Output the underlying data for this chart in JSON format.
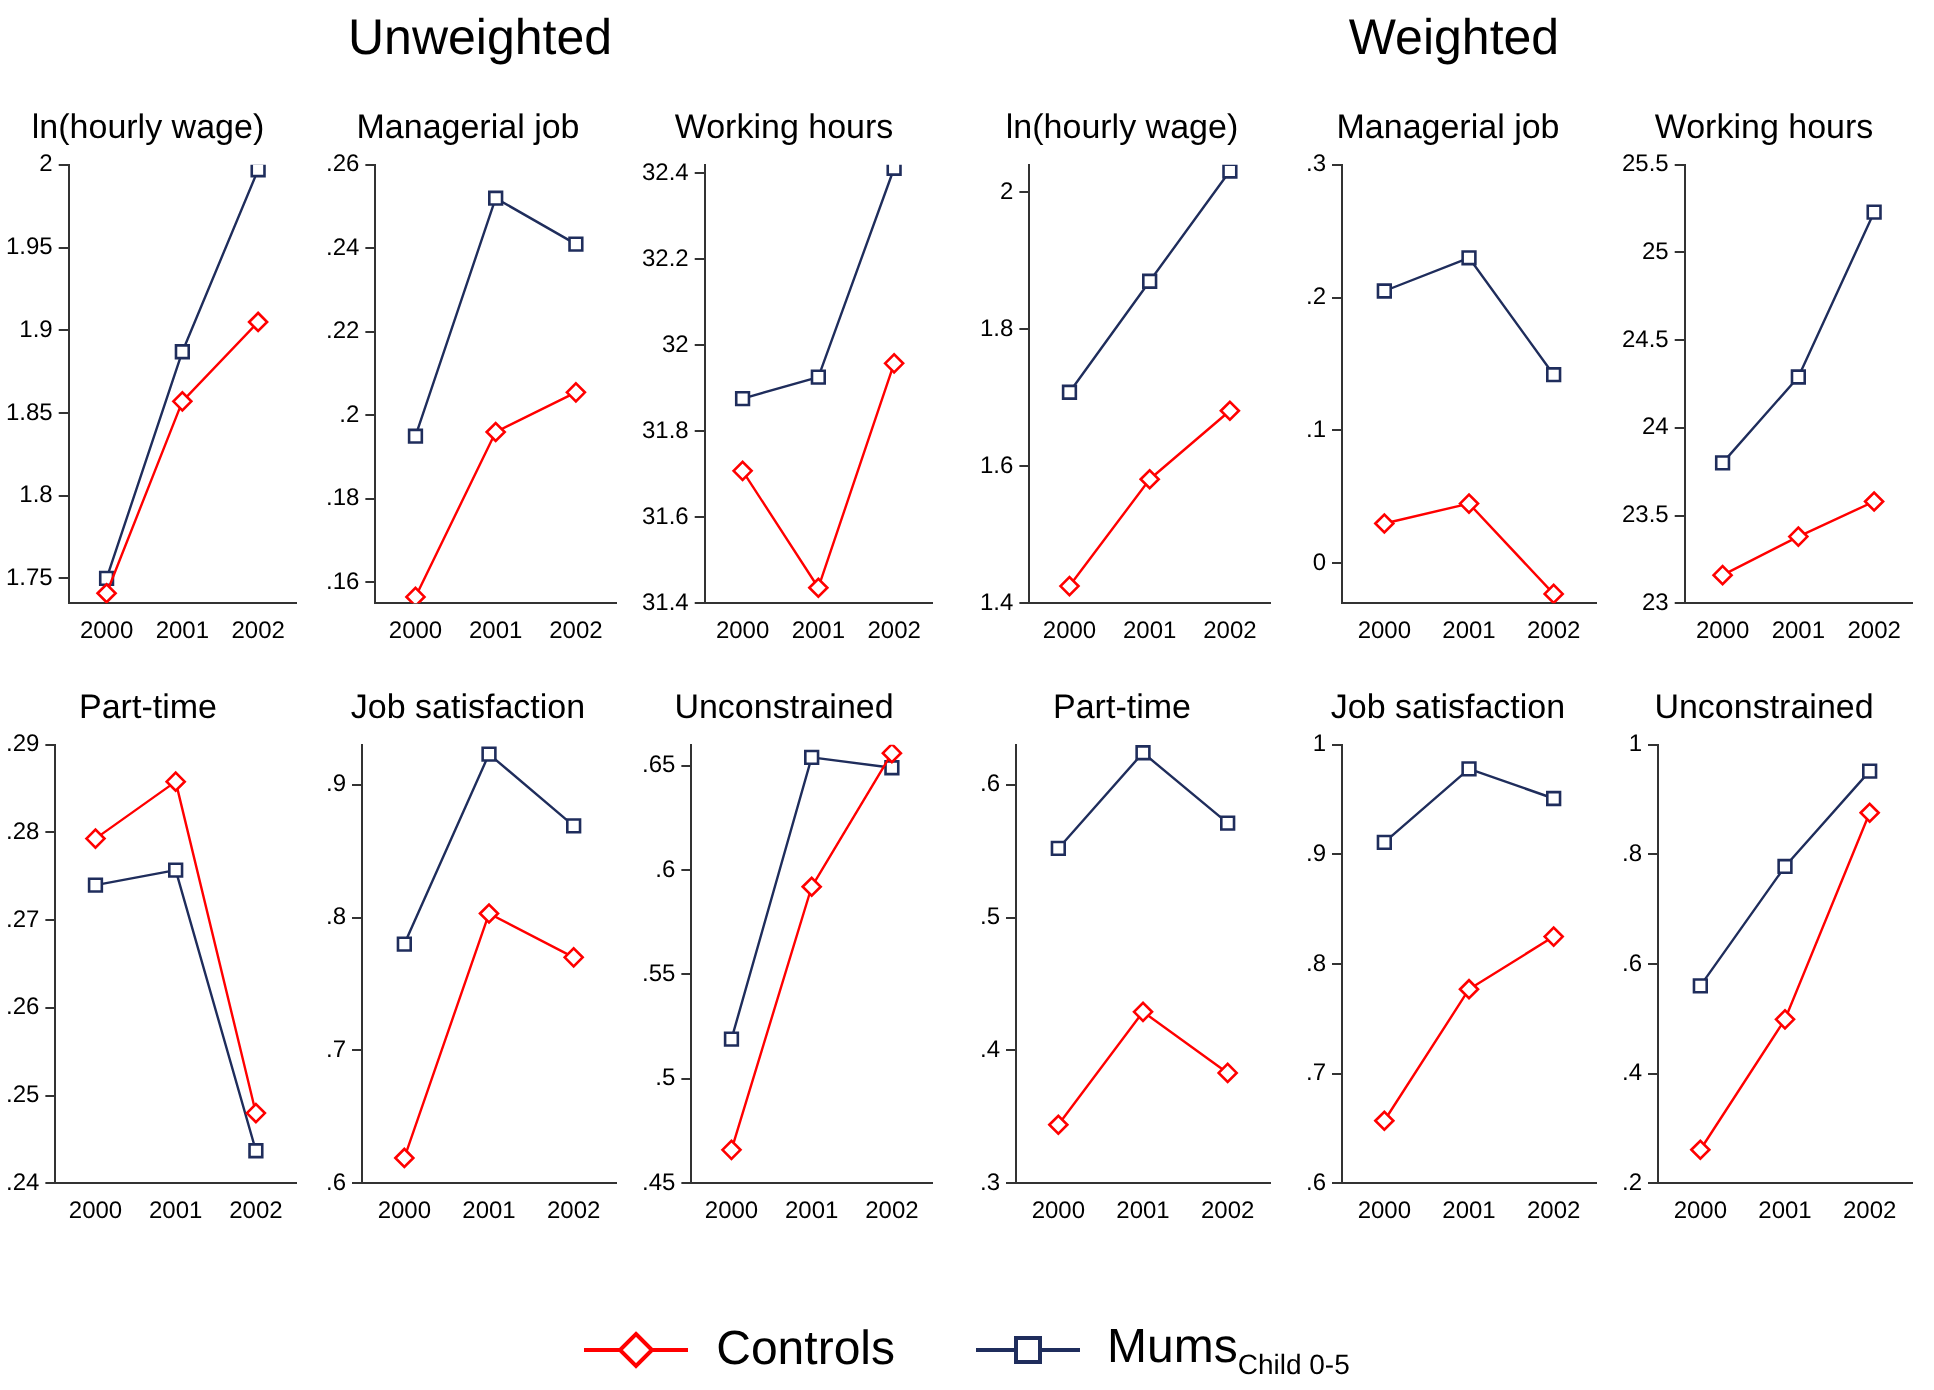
{
  "chart_data": [
    {
      "type": "line",
      "title": "ln(hourly wage)",
      "annotations": [
        "Unweighted"
      ],
      "legend": "bottom",
      "categories": [
        "2000",
        "2001",
        "2002"
      ],
      "ylim": [
        1.735,
        2.0
      ],
      "yticks": [
        1.75,
        1.8,
        1.85,
        1.9,
        1.95,
        2
      ],
      "series": [
        {
          "name": "Controls",
          "color": "#ff0000",
          "marker": "diamond",
          "values": [
            1.741,
            1.857,
            1.905
          ]
        },
        {
          "name": "Mums$_{Child 0-5}$",
          "color": "#1f2d5c",
          "marker": "square",
          "values": [
            1.75,
            1.887,
            1.997
          ]
        }
      ]
    },
    {
      "type": "line",
      "title": "Managerial job",
      "categories": [
        "2000",
        "2001",
        "2002"
      ],
      "ylim": [
        0.155,
        0.26
      ],
      "yticks": [
        {
          "value": 0.16,
          "label": ".16"
        },
        {
          "value": 0.18,
          "label": ".18"
        },
        {
          "value": 0.2,
          "label": ".2"
        },
        {
          "value": 0.22,
          "label": ".22"
        },
        {
          "value": 0.24,
          "label": ".24"
        },
        {
          "value": 0.26,
          "label": ".26"
        }
      ],
      "series": [
        {
          "color": "#ff0000",
          "marker": "diamond",
          "values": [
            0.1565,
            0.196,
            0.2055
          ]
        },
        {
          "color": "#1f2d5c",
          "marker": "square",
          "values": [
            0.195,
            0.252,
            0.241
          ]
        }
      ]
    },
    {
      "type": "line",
      "title": "Working hours",
      "categories": [
        "2000",
        "2001",
        "2002"
      ],
      "ylim": [
        31.4,
        32.42
      ],
      "yticks": [
        31.4,
        31.6,
        31.8,
        32,
        32.2,
        32.4
      ],
      "series": [
        {
          "color": "#ff0000",
          "marker": "diamond",
          "values": [
            31.708,
            31.436,
            31.958
          ]
        },
        {
          "color": "#1f2d5c",
          "marker": "square",
          "values": [
            31.876,
            31.926,
            32.412
          ]
        }
      ]
    },
    {
      "type": "line",
      "title": "ln(hourly wage)",
      "annotations": [
        "Weighted"
      ],
      "categories": [
        "2000",
        "2001",
        "2002"
      ],
      "ylim": [
        1.4,
        2.04
      ],
      "yticks": [
        1.4,
        1.6,
        1.8,
        2
      ],
      "series": [
        {
          "color": "#ff0000",
          "marker": "diamond",
          "values": [
            1.425,
            1.581,
            1.681
          ]
        },
        {
          "color": "#1f2d5c",
          "marker": "square",
          "values": [
            1.708,
            1.87,
            2.031
          ]
        }
      ]
    },
    {
      "type": "line",
      "title": "Managerial job",
      "categories": [
        "2000",
        "2001",
        "2002"
      ],
      "ylim": [
        -0.03,
        0.3
      ],
      "yticks": [
        0,
        {
          "value": 0.1,
          "label": ".1"
        },
        {
          "value": 0.2,
          "label": ".2"
        },
        {
          "value": 0.3,
          "label": ".3"
        }
      ],
      "series": [
        {
          "color": "#ff0000",
          "marker": "diamond",
          "values": [
            0.03,
            0.045,
            -0.023
          ]
        },
        {
          "color": "#1f2d5c",
          "marker": "square",
          "values": [
            0.205,
            0.23,
            0.142
          ]
        }
      ]
    },
    {
      "type": "line",
      "title": "Working hours",
      "categories": [
        "2000",
        "2001",
        "2002"
      ],
      "ylim": [
        23,
        25.5
      ],
      "yticks": [
        23,
        23.5,
        24,
        24.5,
        25,
        25.5
      ],
      "series": [
        {
          "color": "#ff0000",
          "marker": "diamond",
          "values": [
            23.16,
            23.38,
            23.58
          ]
        },
        {
          "color": "#1f2d5c",
          "marker": "square",
          "values": [
            23.8,
            24.29,
            25.23
          ]
        }
      ]
    },
    {
      "type": "line",
      "title": "Part-time",
      "categories": [
        "2000",
        "2001",
        "2002"
      ],
      "ylim": [
        0.24,
        0.29
      ],
      "yticks": [
        {
          "value": 0.24,
          "label": ".24"
        },
        {
          "value": 0.25,
          "label": ".25"
        },
        {
          "value": 0.26,
          "label": ".26"
        },
        {
          "value": 0.27,
          "label": ".27"
        },
        {
          "value": 0.28,
          "label": ".28"
        },
        {
          "value": 0.29,
          "label": ".29"
        }
      ],
      "series": [
        {
          "color": "#ff0000",
          "marker": "diamond",
          "values": [
            0.2793,
            0.2858,
            0.248
          ]
        },
        {
          "color": "#1f2d5c",
          "marker": "square",
          "values": [
            0.274,
            0.2757,
            0.2437
          ]
        }
      ]
    },
    {
      "type": "line",
      "title": "Job satisfaction",
      "categories": [
        "2000",
        "2001",
        "2002"
      ],
      "ylim": [
        0.6,
        0.93
      ],
      "yticks": [
        {
          "value": 0.6,
          "label": ".6"
        },
        {
          "value": 0.7,
          "label": ".7"
        },
        {
          "value": 0.8,
          "label": ".8"
        },
        {
          "value": 0.9,
          "label": ".9"
        }
      ],
      "series": [
        {
          "color": "#ff0000",
          "marker": "diamond",
          "values": [
            0.619,
            0.803,
            0.77
          ]
        },
        {
          "color": "#1f2d5c",
          "marker": "square",
          "values": [
            0.78,
            0.923,
            0.869
          ]
        }
      ]
    },
    {
      "type": "line",
      "title": "Unconstrained",
      "categories": [
        "2000",
        "2001",
        "2002"
      ],
      "ylim": [
        0.45,
        0.66
      ],
      "yticks": [
        {
          "value": 0.45,
          "label": ".45"
        },
        {
          "value": 0.5,
          "label": ".5"
        },
        {
          "value": 0.55,
          "label": ".55"
        },
        {
          "value": 0.6,
          "label": ".6"
        },
        {
          "value": 0.65,
          "label": ".65"
        }
      ],
      "series": [
        {
          "color": "#ff0000",
          "marker": "diamond",
          "values": [
            0.466,
            0.592,
            0.656
          ]
        },
        {
          "color": "#1f2d5c",
          "marker": "square",
          "values": [
            0.519,
            0.654,
            0.649
          ]
        }
      ]
    },
    {
      "type": "line",
      "title": "Part-time",
      "categories": [
        "2000",
        "2001",
        "2002"
      ],
      "ylim": [
        0.3,
        0.63
      ],
      "yticks": [
        {
          "value": 0.3,
          "label": ".3"
        },
        {
          "value": 0.4,
          "label": ".4"
        },
        {
          "value": 0.5,
          "label": ".5"
        },
        {
          "value": 0.6,
          "label": ".6"
        }
      ],
      "series": [
        {
          "color": "#ff0000",
          "marker": "diamond",
          "values": [
            0.344,
            0.429,
            0.383
          ]
        },
        {
          "color": "#1f2d5c",
          "marker": "square",
          "values": [
            0.552,
            0.624,
            0.571
          ]
        }
      ]
    },
    {
      "type": "line",
      "title": "Job satisfaction",
      "categories": [
        "2000",
        "2001",
        "2002"
      ],
      "ylim": [
        0.6,
        1
      ],
      "yticks": [
        {
          "value": 0.6,
          "label": ".6"
        },
        {
          "value": 0.7,
          "label": ".7"
        },
        {
          "value": 0.8,
          "label": ".8"
        },
        {
          "value": 0.9,
          "label": ".9"
        },
        1
      ],
      "series": [
        {
          "color": "#ff0000",
          "marker": "diamond",
          "values": [
            0.657,
            0.777,
            0.825
          ]
        },
        {
          "color": "#1f2d5c",
          "marker": "square",
          "values": [
            0.911,
            0.978,
            0.951
          ]
        }
      ]
    },
    {
      "type": "line",
      "title": "Unconstrained",
      "categories": [
        "2000",
        "2001",
        "2002"
      ],
      "ylim": [
        0.2,
        1
      ],
      "yticks": [
        {
          "value": 0.2,
          "label": ".2"
        },
        {
          "value": 0.4,
          "label": ".4"
        },
        {
          "value": 0.6,
          "label": ".6"
        },
        {
          "value": 0.8,
          "label": ".8"
        },
        1
      ],
      "series": [
        {
          "color": "#ff0000",
          "marker": "diamond",
          "values": [
            0.261,
            0.499,
            0.876
          ]
        },
        {
          "color": "#1f2d5c",
          "marker": "square",
          "values": [
            0.56,
            0.778,
            0.952
          ]
        }
      ]
    }
  ]
}
